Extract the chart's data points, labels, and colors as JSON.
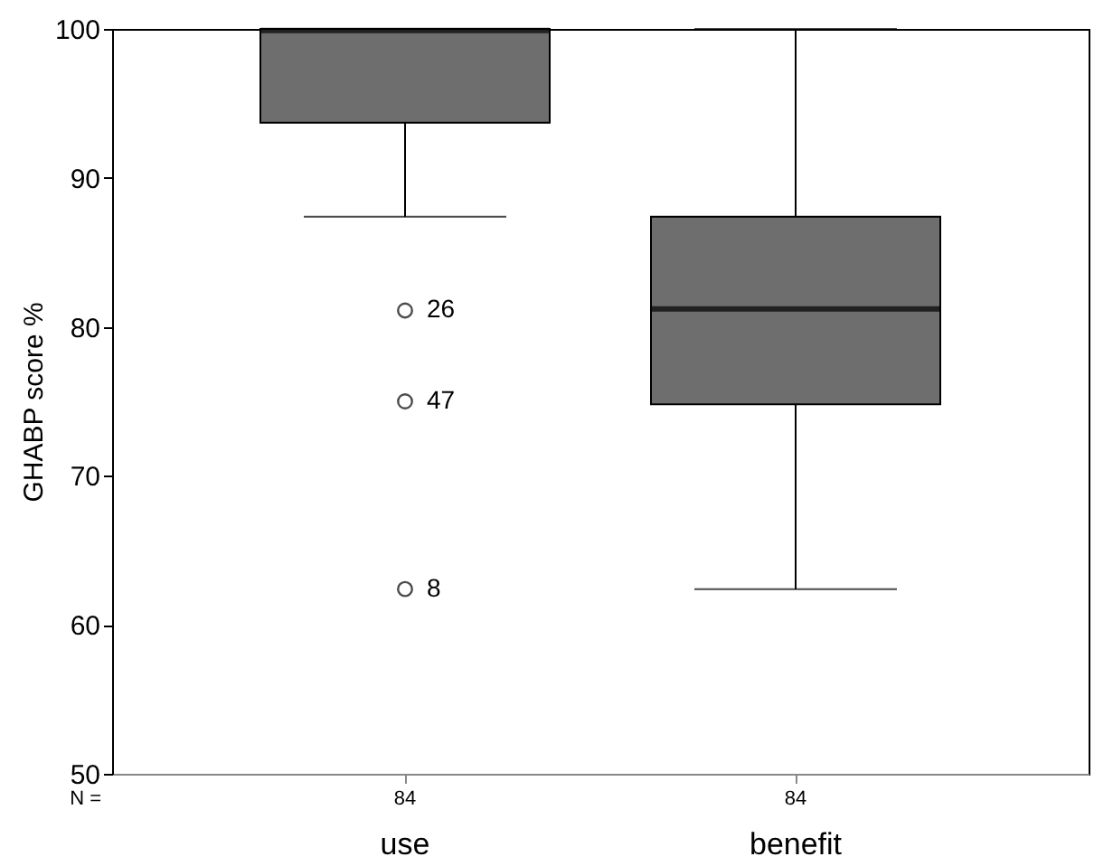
{
  "chart_data": {
    "type": "box",
    "ylabel": "GHABP score %",
    "categories": [
      "use",
      "benefit"
    ],
    "color": "#6e6e6e",
    "boxes": [
      {
        "low": 87.4,
        "q1": 93.7,
        "median": 99.9,
        "q3": 100,
        "high": 100
      },
      {
        "low": 62.4,
        "q1": 74.8,
        "median": 81.2,
        "q3": 87.4,
        "high": 100
      }
    ],
    "ylim": [
      50,
      100
    ],
    "yticks": [
      50,
      60,
      70,
      80,
      90,
      100
    ],
    "series": [
      {
        "type": "scatter",
        "x": [
          "use",
          "use",
          "use"
        ],
        "values": [
          81.1,
          75,
          62.4
        ],
        "marker": "circle",
        "color": "#000000"
      }
    ],
    "annotations": [
      "N =",
      "84",
      "84",
      {
        "text": "26",
        "x": "use",
        "y": 81.1
      },
      {
        "text": "47",
        "x": "use",
        "y": 75
      },
      {
        "text": "8",
        "x": "use",
        "y": 62.4
      }
    ]
  }
}
